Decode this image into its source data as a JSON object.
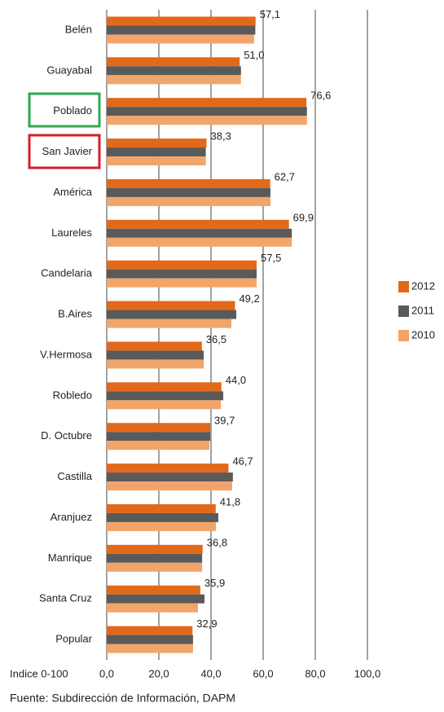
{
  "chart_data": {
    "type": "hbar",
    "categories": [
      "Belén",
      "Guayabal",
      "Poblado",
      "San Javier",
      "América",
      "Laureles",
      "Candelaria",
      "B.Aires",
      "V.Hermosa",
      "Robledo",
      "D. Octubre",
      "Castilla",
      "Aranjuez",
      "Manrique",
      "Santa Cruz",
      "Popular"
    ],
    "series": [
      {
        "name": "2012",
        "color": "#e2691a",
        "values": [
          57.1,
          51.0,
          76.6,
          38.3,
          62.7,
          69.9,
          57.5,
          49.2,
          36.5,
          44.0,
          39.7,
          46.7,
          41.8,
          36.8,
          35.9,
          32.9
        ],
        "value_labels": [
          "57,1",
          "51,0",
          "76,6",
          "38,3",
          "62,7",
          "69,9",
          "57,5",
          "49,2",
          "36,5",
          "44,0",
          "39,7",
          "46,7",
          "41,8",
          "36,8",
          "35,9",
          "32,9"
        ]
      },
      {
        "name": "2011",
        "color": "#5a5a5a",
        "values": [
          57.0,
          51.5,
          76.8,
          38.0,
          62.8,
          71.0,
          57.5,
          49.7,
          37.2,
          44.7,
          39.7,
          48.4,
          42.8,
          36.6,
          37.5,
          33.1
        ]
      },
      {
        "name": "2010",
        "color": "#f2a56a",
        "values": [
          56.5,
          51.5,
          76.8,
          38.0,
          62.8,
          71.0,
          57.5,
          47.8,
          37.2,
          43.8,
          39.4,
          48.1,
          41.9,
          36.6,
          35.0,
          33.1
        ]
      }
    ],
    "xlim": [
      0,
      100
    ],
    "xticks": [
      {
        "value": 0,
        "label": "0,0"
      },
      {
        "value": 20,
        "label": "20,0"
      },
      {
        "value": 40,
        "label": "40,0"
      },
      {
        "value": 60,
        "label": "60,0"
      },
      {
        "value": 80,
        "label": "80,0"
      },
      {
        "value": 100,
        "label": "100,0"
      }
    ],
    "xlabel": "Indice 0-100",
    "source": "Fuente: Subdirección de Información, DAPM",
    "grid": true,
    "legend": "right"
  }
}
